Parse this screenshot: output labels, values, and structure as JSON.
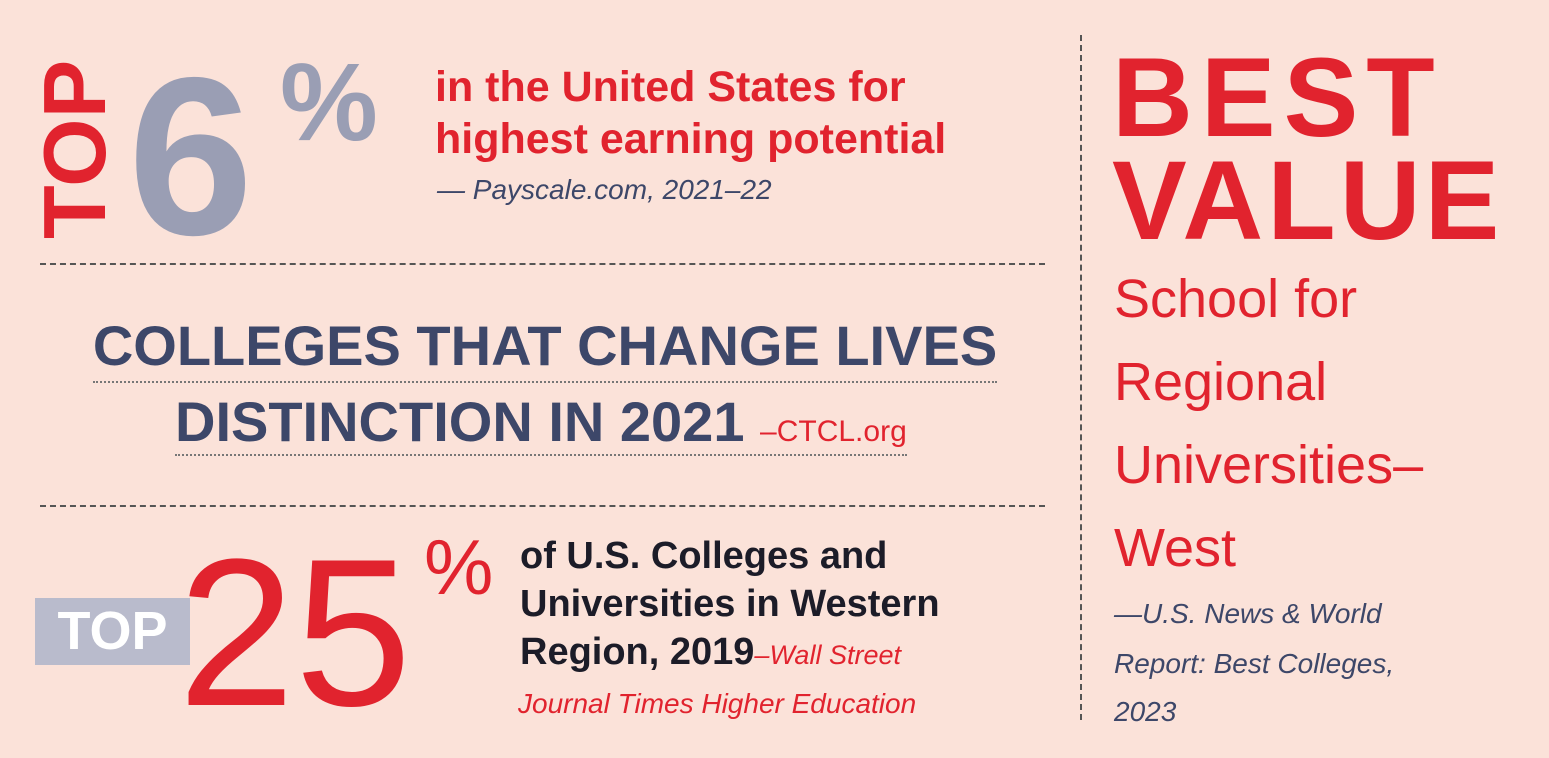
{
  "top6": {
    "top": "TOP",
    "number": "6",
    "percent": "%",
    "lines": [
      "in the United States for",
      "highest earning potential"
    ],
    "source": "— Payscale.com, 2021–22"
  },
  "ctcl": {
    "lines": [
      "COLLEGES THAT CHANGE LIVES",
      "DISTINCTION IN 2021"
    ],
    "source": "–CTCL.org"
  },
  "top25": {
    "top": "TOP",
    "number": "25",
    "percent": "%",
    "lines": [
      "of U.S. Colleges and",
      "Universities in Western",
      "Region, 2019"
    ],
    "source": [
      "–Wall Street",
      "Journal Times Higher Education"
    ]
  },
  "best_value": {
    "heading": [
      "BEST",
      "VALUE"
    ],
    "lines": [
      "School for",
      "Regional",
      "Universities–",
      "West"
    ],
    "source": [
      "—U.S. News & World",
      "Report: Best Colleges,",
      "2023"
    ]
  }
}
